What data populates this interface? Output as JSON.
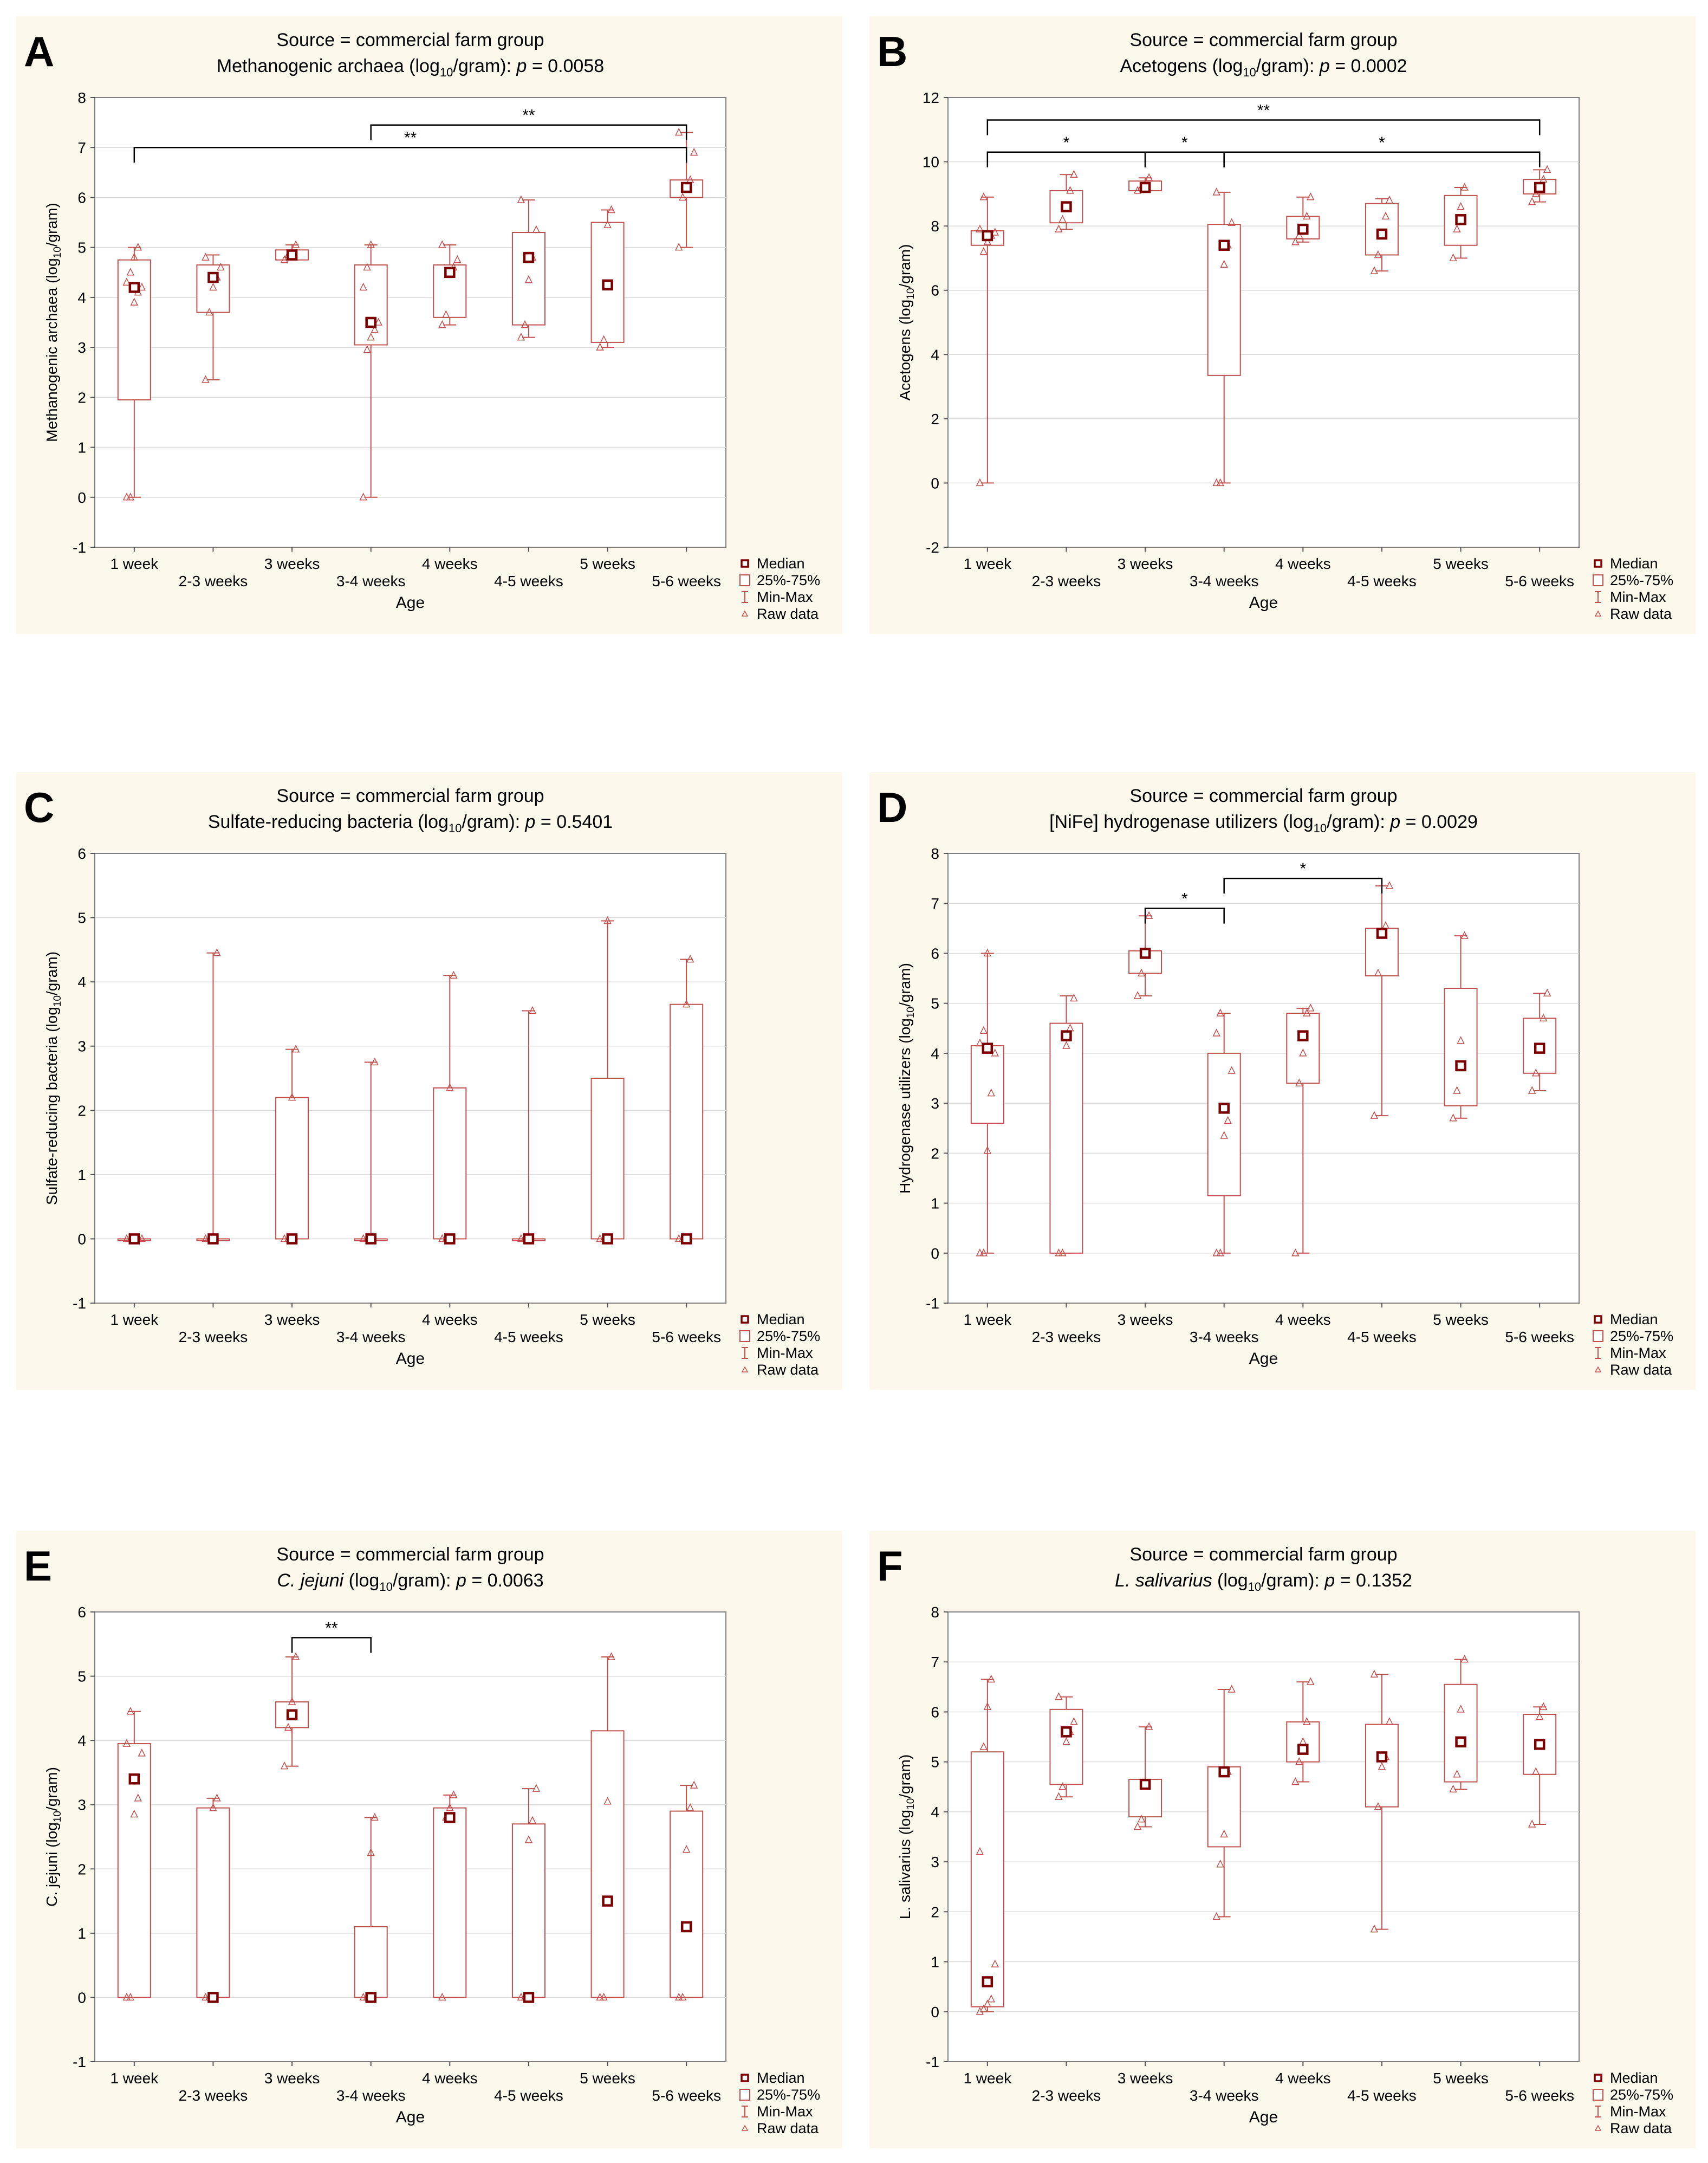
{
  "figure": {
    "legend": [
      "Median",
      "25%-75%",
      "Min-Max",
      "Raw data"
    ],
    "xlabel": "Age",
    "categories": [
      "1 week",
      "2-3 weeks",
      "3 weeks",
      "3-4 weeks",
      "4 weeks",
      "4-5 weeks",
      "5 weeks",
      "5-6 weeks"
    ]
  },
  "colors": {
    "box": "#c0504d",
    "median": "#7b0000",
    "panel_bg": "#fdf8ec",
    "grid": "#d9d9d9"
  },
  "chart_data": [
    {
      "letter": "A",
      "type": "box",
      "title": "Source = commercial farm group",
      "subtitle": {
        "pre": "Methanogenic archaea (log",
        "sub": "10",
        "post": "/gram): ",
        "p": "p",
        "val": " = 0.0058"
      },
      "subtitle_italic": false,
      "ylabel": {
        "pre": "Methanogenic archaea (log",
        "sub": "10",
        "post": "/gram)"
      },
      "ylim": [
        -1,
        8
      ],
      "yticks": [
        -1,
        0,
        1,
        2,
        3,
        4,
        5,
        6,
        7,
        8
      ],
      "boxes": [
        {
          "median": 4.2,
          "q1": 1.95,
          "q3": 4.75,
          "min": 0,
          "max": 5.0,
          "raw": [
            0,
            0,
            3.9,
            4.1,
            4.2,
            4.3,
            4.5,
            4.8,
            5.0
          ]
        },
        {
          "median": 4.4,
          "q1": 3.7,
          "q3": 4.65,
          "min": 2.35,
          "max": 4.85,
          "raw": [
            2.35,
            3.7,
            4.2,
            4.4,
            4.6,
            4.8
          ]
        },
        {
          "median": 4.85,
          "q1": 4.75,
          "q3": 4.95,
          "min": 4.75,
          "max": 5.05,
          "raw": [
            4.75,
            4.85,
            4.9,
            5.05
          ]
        },
        {
          "median": 3.5,
          "q1": 3.05,
          "q3": 4.65,
          "min": 0,
          "max": 5.05,
          "raw": [
            0,
            2.95,
            3.2,
            3.35,
            3.5,
            4.2,
            4.6,
            5.05
          ]
        },
        {
          "median": 4.5,
          "q1": 3.6,
          "q3": 4.65,
          "min": 3.45,
          "max": 5.05,
          "raw": [
            3.45,
            3.65,
            4.45,
            4.6,
            4.75,
            5.05
          ]
        },
        {
          "median": 4.8,
          "q1": 3.45,
          "q3": 5.3,
          "min": 3.2,
          "max": 5.95,
          "raw": [
            3.2,
            3.45,
            4.35,
            4.8,
            5.35,
            5.95
          ]
        },
        {
          "median": 4.25,
          "q1": 3.1,
          "q3": 5.5,
          "min": 3.0,
          "max": 5.75,
          "raw": [
            3.0,
            3.15,
            5.45,
            5.75
          ]
        },
        {
          "median": 6.2,
          "q1": 6.0,
          "q3": 6.35,
          "min": 5.0,
          "max": 7.3,
          "raw": [
            5.0,
            6.0,
            6.2,
            6.35,
            6.9,
            7.3
          ]
        }
      ],
      "brackets": [
        {
          "from": 0,
          "to": 7,
          "y": 7.0,
          "label": "**"
        },
        {
          "from": 3,
          "to": 7,
          "y": 7.45,
          "label": "**"
        }
      ]
    },
    {
      "letter": "B",
      "type": "box",
      "title": "Source = commercial farm group",
      "subtitle": {
        "pre": "Acetogens (log",
        "sub": "10",
        "post": "/gram): ",
        "p": "p",
        "val": " = 0.0002"
      },
      "subtitle_italic": false,
      "ylabel": {
        "pre": "Acetogens (log",
        "sub": "10",
        "post": "/gram)"
      },
      "ylim": [
        -2,
        12
      ],
      "yticks": [
        -2,
        0,
        2,
        4,
        6,
        8,
        10,
        12
      ],
      "boxes": [
        {
          "median": 7.7,
          "q1": 7.4,
          "q3": 7.85,
          "min": 0,
          "max": 8.9,
          "raw": [
            0,
            7.2,
            7.5,
            7.7,
            7.8,
            7.9,
            8.9
          ]
        },
        {
          "median": 8.6,
          "q1": 8.1,
          "q3": 9.1,
          "min": 7.9,
          "max": 9.6,
          "raw": [
            7.9,
            8.2,
            8.6,
            9.1,
            9.6
          ]
        },
        {
          "median": 9.2,
          "q1": 9.1,
          "q3": 9.4,
          "min": 9.1,
          "max": 9.5,
          "raw": [
            9.1,
            9.2,
            9.3,
            9.5
          ]
        },
        {
          "median": 7.4,
          "q1": 3.35,
          "q3": 8.05,
          "min": 0,
          "max": 9.05,
          "raw": [
            0,
            0,
            6.8,
            7.4,
            8.1,
            9.05
          ]
        },
        {
          "median": 7.9,
          "q1": 7.6,
          "q3": 8.3,
          "min": 7.5,
          "max": 8.9,
          "raw": [
            7.5,
            7.7,
            7.9,
            8.3,
            8.9
          ]
        },
        {
          "median": 7.75,
          "q1": 7.1,
          "q3": 8.7,
          "min": 6.6,
          "max": 8.85,
          "raw": [
            6.6,
            7.1,
            7.75,
            8.3,
            8.8
          ]
        },
        {
          "median": 8.2,
          "q1": 7.4,
          "q3": 8.95,
          "min": 7.0,
          "max": 9.2,
          "raw": [
            7.0,
            7.9,
            8.6,
            9.2
          ]
        },
        {
          "median": 9.2,
          "q1": 9.0,
          "q3": 9.45,
          "min": 8.75,
          "max": 9.75,
          "raw": [
            8.75,
            9.0,
            9.2,
            9.45,
            9.75
          ]
        }
      ],
      "brackets": [
        {
          "from": 0,
          "to": 2,
          "y": 10.3,
          "label": "*"
        },
        {
          "from": 2,
          "to": 3,
          "y": 10.3,
          "label": "*"
        },
        {
          "from": 3,
          "to": 7,
          "y": 10.3,
          "label": "*"
        },
        {
          "from": 0,
          "to": 7,
          "y": 11.3,
          "label": "**"
        }
      ]
    },
    {
      "letter": "C",
      "type": "box",
      "title": "Source = commercial farm group",
      "subtitle": {
        "pre": "Sulfate-reducing bacteria (log",
        "sub": "10",
        "post": "/gram): ",
        "p": "p",
        "val": " = 0.5401"
      },
      "subtitle_italic": false,
      "ylabel": {
        "pre": "Sulfate-reducing bacteria (log",
        "sub": "10",
        "post": "/gram)"
      },
      "ylim": [
        -1,
        6
      ],
      "yticks": [
        -1,
        0,
        1,
        2,
        3,
        4,
        5,
        6
      ],
      "boxes": [
        {
          "median": 0,
          "q1": 0,
          "q3": 0,
          "min": 0,
          "max": 0,
          "raw": [
            0,
            0,
            0,
            0,
            0
          ]
        },
        {
          "median": 0,
          "q1": 0,
          "q3": 0,
          "min": 0,
          "max": 4.45,
          "raw": [
            0,
            0,
            0,
            4.45
          ]
        },
        {
          "median": 0,
          "q1": 0,
          "q3": 2.2,
          "min": 0,
          "max": 2.95,
          "raw": [
            0,
            0,
            2.2,
            2.95
          ]
        },
        {
          "median": 0,
          "q1": 0,
          "q3": 0,
          "min": 0,
          "max": 2.75,
          "raw": [
            0,
            0,
            0,
            2.75
          ]
        },
        {
          "median": 0,
          "q1": 0,
          "q3": 2.35,
          "min": 0,
          "max": 4.1,
          "raw": [
            0,
            0,
            2.35,
            4.1
          ]
        },
        {
          "median": 0,
          "q1": 0,
          "q3": 0,
          "min": 0,
          "max": 3.55,
          "raw": [
            0,
            0,
            0,
            3.55
          ]
        },
        {
          "median": 0,
          "q1": 0,
          "q3": 2.5,
          "min": 0,
          "max": 4.95,
          "raw": [
            0,
            0,
            4.95
          ]
        },
        {
          "median": 0,
          "q1": 0,
          "q3": 3.65,
          "min": 0,
          "max": 4.35,
          "raw": [
            0,
            0,
            3.65,
            4.35
          ]
        }
      ],
      "brackets": []
    },
    {
      "letter": "D",
      "type": "box",
      "title": "Source = commercial farm group",
      "subtitle": {
        "pre": "[NiFe] hydrogenase utilizers (log",
        "sub": "10",
        "post": "/gram): ",
        "p": "p",
        "val": " = 0.0029"
      },
      "subtitle_italic": false,
      "ylabel": {
        "pre": "Hydrogenase utilizers (log",
        "sub": "10",
        "post": "/gram)"
      },
      "ylim": [
        -1,
        8
      ],
      "yticks": [
        -1,
        0,
        1,
        2,
        3,
        4,
        5,
        6,
        7,
        8
      ],
      "boxes": [
        {
          "median": 4.1,
          "q1": 2.6,
          "q3": 4.15,
          "min": 0,
          "max": 6.0,
          "raw": [
            0,
            0,
            2.05,
            3.2,
            4.0,
            4.2,
            4.45,
            6.0
          ]
        },
        {
          "median": 4.35,
          "q1": 0,
          "q3": 4.6,
          "min": 0,
          "max": 5.15,
          "raw": [
            0,
            0,
            4.15,
            4.5,
            5.1
          ]
        },
        {
          "median": 6.0,
          "q1": 5.6,
          "q3": 6.05,
          "min": 5.15,
          "max": 6.75,
          "raw": [
            5.15,
            5.6,
            6.05,
            6.75
          ]
        },
        {
          "median": 2.9,
          "q1": 1.15,
          "q3": 4.0,
          "min": 0,
          "max": 4.8,
          "raw": [
            0,
            0,
            2.35,
            2.65,
            3.65,
            4.4,
            4.8
          ]
        },
        {
          "median": 4.35,
          "q1": 3.4,
          "q3": 4.8,
          "min": 0,
          "max": 4.9,
          "raw": [
            0,
            3.4,
            4.0,
            4.8,
            4.9
          ]
        },
        {
          "median": 6.4,
          "q1": 5.55,
          "q3": 6.5,
          "min": 2.75,
          "max": 7.35,
          "raw": [
            2.75,
            5.6,
            6.45,
            6.55,
            7.35
          ]
        },
        {
          "median": 3.75,
          "q1": 2.95,
          "q3": 5.3,
          "min": 2.7,
          "max": 6.35,
          "raw": [
            2.7,
            3.25,
            4.25,
            6.35
          ]
        },
        {
          "median": 4.1,
          "q1": 3.6,
          "q3": 4.7,
          "min": 3.25,
          "max": 5.2,
          "raw": [
            3.25,
            3.6,
            4.1,
            4.7,
            5.2
          ]
        }
      ],
      "brackets": [
        {
          "from": 2,
          "to": 3,
          "y": 6.9,
          "label": "*"
        },
        {
          "from": 3,
          "to": 5,
          "y": 7.5,
          "label": "*"
        }
      ]
    },
    {
      "letter": "E",
      "type": "box",
      "title": "Source = commercial farm group",
      "subtitle": {
        "pre": "C. jejuni",
        "sub": "",
        "post": "",
        "p": "p",
        "val": " = 0.0063",
        "italic_name": true
      },
      "subtitle_italic": true,
      "ylabel": {
        "pre": "C. jejuni (log",
        "sub": "10",
        "post": "/gram)"
      },
      "ylim": [
        -1,
        6
      ],
      "yticks": [
        -1,
        0,
        1,
        2,
        3,
        4,
        5,
        6
      ],
      "boxes": [
        {
          "median": 3.4,
          "q1": 0,
          "q3": 3.95,
          "min": 0,
          "max": 4.45,
          "raw": [
            0,
            0,
            2.85,
            3.1,
            3.8,
            3.95,
            4.45
          ]
        },
        {
          "median": 0,
          "q1": 0,
          "q3": 2.95,
          "min": 0,
          "max": 3.1,
          "raw": [
            0,
            0,
            2.95,
            3.1
          ]
        },
        {
          "median": 4.4,
          "q1": 4.2,
          "q3": 4.6,
          "min": 3.6,
          "max": 5.3,
          "raw": [
            3.6,
            4.2,
            4.6,
            5.3
          ]
        },
        {
          "median": 0,
          "q1": 0,
          "q3": 1.1,
          "min": 0,
          "max": 2.8,
          "raw": [
            0,
            0,
            2.25,
            2.8
          ]
        },
        {
          "median": 2.8,
          "q1": 0,
          "q3": 2.95,
          "min": 0,
          "max": 3.15,
          "raw": [
            0,
            2.8,
            2.95,
            3.15
          ]
        },
        {
          "median": 0,
          "q1": 0,
          "q3": 2.7,
          "min": 0,
          "max": 3.25,
          "raw": [
            0,
            0,
            2.45,
            2.75,
            3.25
          ]
        },
        {
          "median": 1.5,
          "q1": 0,
          "q3": 4.15,
          "min": 0,
          "max": 5.3,
          "raw": [
            0,
            0,
            3.05,
            5.3
          ]
        },
        {
          "median": 1.1,
          "q1": 0,
          "q3": 2.9,
          "min": 0,
          "max": 3.3,
          "raw": [
            0,
            0,
            2.3,
            2.95,
            3.3
          ]
        }
      ],
      "brackets": [
        {
          "from": 2,
          "to": 3,
          "y": 5.6,
          "label": "**"
        }
      ]
    },
    {
      "letter": "F",
      "type": "box",
      "title": "Source = commercial farm group",
      "subtitle": {
        "pre": "L. salivarius",
        "sub": "",
        "post": "",
        "p": "p",
        "val": " = 0.1352",
        "italic_name": true
      },
      "subtitle_italic": true,
      "ylabel": {
        "pre": "L. salivarius (log",
        "sub": "10",
        "post": "/gram)"
      },
      "ylim": [
        -1,
        8
      ],
      "yticks": [
        -1,
        0,
        1,
        2,
        3,
        4,
        5,
        6,
        7,
        8
      ],
      "boxes": [
        {
          "median": 0.6,
          "q1": 0.1,
          "q3": 5.2,
          "min": 0,
          "max": 6.65,
          "raw": [
            0,
            0.05,
            0.15,
            0.25,
            0.95,
            3.2,
            5.3,
            6.1,
            6.65
          ]
        },
        {
          "median": 5.6,
          "q1": 4.55,
          "q3": 6.05,
          "min": 4.3,
          "max": 6.3,
          "raw": [
            4.3,
            4.5,
            5.4,
            5.6,
            5.8,
            6.3
          ]
        },
        {
          "median": 4.55,
          "q1": 3.9,
          "q3": 4.65,
          "min": 3.7,
          "max": 5.7,
          "raw": [
            3.7,
            3.85,
            4.55,
            5.7
          ]
        },
        {
          "median": 4.8,
          "q1": 3.3,
          "q3": 4.9,
          "min": 1.9,
          "max": 6.45,
          "raw": [
            1.9,
            2.95,
            3.55,
            4.8,
            6.45
          ]
        },
        {
          "median": 5.25,
          "q1": 5.0,
          "q3": 5.8,
          "min": 4.6,
          "max": 6.6,
          "raw": [
            4.6,
            5.0,
            5.4,
            5.8,
            6.6
          ]
        },
        {
          "median": 5.1,
          "q1": 4.1,
          "q3": 5.75,
          "min": 1.65,
          "max": 6.75,
          "raw": [
            1.65,
            4.1,
            4.9,
            5.1,
            5.8,
            6.75
          ]
        },
        {
          "median": 5.4,
          "q1": 4.6,
          "q3": 6.55,
          "min": 4.45,
          "max": 7.05,
          "raw": [
            4.45,
            4.75,
            6.05,
            7.05
          ]
        },
        {
          "median": 5.35,
          "q1": 4.75,
          "q3": 5.95,
          "min": 3.75,
          "max": 6.1,
          "raw": [
            3.75,
            4.8,
            5.9,
            6.1
          ]
        }
      ],
      "brackets": []
    }
  ]
}
